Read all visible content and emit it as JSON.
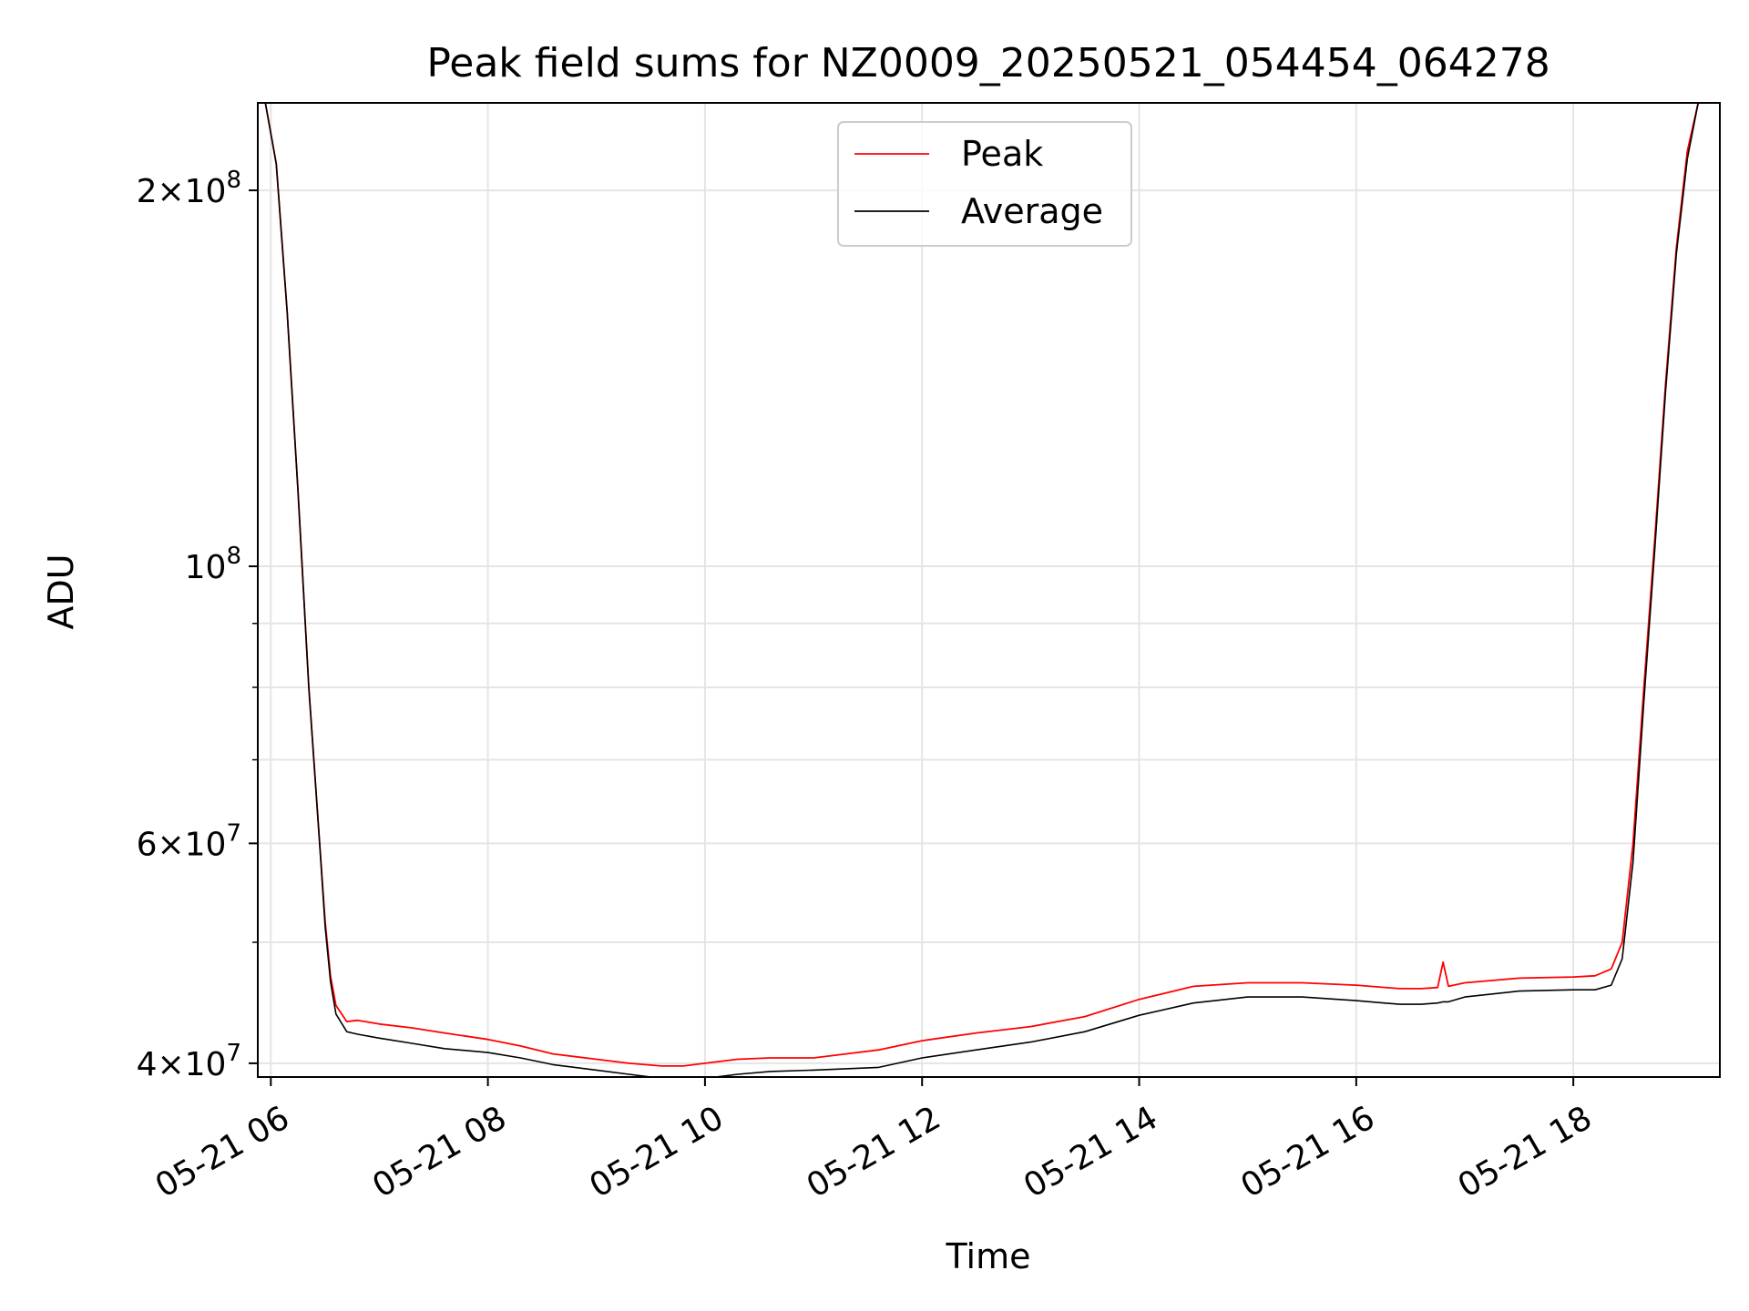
{
  "chart_data": {
    "type": "line",
    "title": "Peak field sums for NZ0009_20250521_054454_064278",
    "xlabel": "Time",
    "ylabel": "ADU",
    "x_unit": "hour",
    "xlim": [
      5.88,
      19.35
    ],
    "y_scale": "log",
    "ylim": [
      39000000,
      235000000
    ],
    "grid": true,
    "legend_position": "upper center",
    "x_ticks": [
      {
        "value": 6,
        "label": "05-21 06"
      },
      {
        "value": 8,
        "label": "05-21 08"
      },
      {
        "value": 10,
        "label": "05-21 10"
      },
      {
        "value": 12,
        "label": "05-21 12"
      },
      {
        "value": 14,
        "label": "05-21 14"
      },
      {
        "value": 16,
        "label": "05-21 16"
      },
      {
        "value": 18,
        "label": "05-21 18"
      }
    ],
    "y_ticks": [
      {
        "value": 40000000,
        "mantissa": "4",
        "exp": "7"
      },
      {
        "value": 60000000,
        "mantissa": "6",
        "exp": "7"
      },
      {
        "value": 100000000,
        "mantissa": "",
        "exp": "8"
      },
      {
        "value": 200000000,
        "mantissa": "2",
        "exp": "8"
      }
    ],
    "y_minor_ticks": [
      50000000,
      70000000,
      80000000,
      90000000
    ],
    "series": [
      {
        "name": "Peak",
        "color": "#ff0000",
        "x": [
          5.95,
          6.05,
          6.15,
          6.25,
          6.35,
          6.45,
          6.5,
          6.55,
          6.6,
          6.7,
          6.8,
          7.0,
          7.3,
          7.6,
          8.0,
          8.3,
          8.6,
          9.0,
          9.3,
          9.6,
          9.8,
          10.0,
          10.3,
          10.6,
          11.0,
          11.3,
          11.6,
          12.0,
          12.5,
          13.0,
          13.5,
          14.0,
          14.5,
          15.0,
          15.5,
          16.0,
          16.4,
          16.6,
          16.75,
          16.8,
          16.85,
          17.0,
          17.5,
          18.0,
          18.2,
          18.35,
          18.45,
          18.55,
          18.65,
          18.75,
          18.85,
          18.95,
          19.05,
          19.15,
          19.3
        ],
        "y": [
          235000000,
          210000000,
          160000000,
          115000000,
          80000000,
          60000000,
          52000000,
          47000000,
          44500000,
          43200000,
          43300000,
          43000000,
          42700000,
          42300000,
          41800000,
          41300000,
          40700000,
          40300000,
          40000000,
          39800000,
          39800000,
          40000000,
          40300000,
          40400000,
          40400000,
          40700000,
          41000000,
          41700000,
          42300000,
          42800000,
          43600000,
          45000000,
          46100000,
          46400000,
          46400000,
          46200000,
          45900000,
          45900000,
          46000000,
          48200000,
          46100000,
          46400000,
          46800000,
          46900000,
          47000000,
          47600000,
          50000000,
          60000000,
          80000000,
          105000000,
          140000000,
          180000000,
          215000000,
          235000000,
          235000000
        ]
      },
      {
        "name": "Average",
        "color": "#000000",
        "x": [
          5.95,
          6.05,
          6.15,
          6.25,
          6.35,
          6.45,
          6.5,
          6.55,
          6.6,
          6.7,
          6.8,
          7.0,
          7.3,
          7.6,
          8.0,
          8.3,
          8.6,
          9.0,
          9.3,
          9.6,
          9.8,
          10.0,
          10.3,
          10.6,
          11.0,
          11.3,
          11.6,
          12.0,
          12.5,
          13.0,
          13.5,
          14.0,
          14.5,
          15.0,
          15.5,
          16.0,
          16.4,
          16.6,
          16.75,
          16.8,
          16.85,
          17.0,
          17.5,
          18.0,
          18.2,
          18.35,
          18.45,
          18.55,
          18.65,
          18.75,
          18.85,
          18.95,
          19.05,
          19.15,
          19.3
        ],
        "y": [
          235000000,
          210000000,
          160000000,
          115000000,
          80000000,
          60000000,
          51500000,
          46500000,
          43800000,
          42400000,
          42200000,
          41900000,
          41500000,
          41100000,
          40800000,
          40400000,
          39900000,
          39500000,
          39200000,
          38900000,
          38800000,
          38900000,
          39200000,
          39400000,
          39500000,
          39600000,
          39700000,
          40400000,
          41000000,
          41600000,
          42400000,
          43700000,
          44700000,
          45200000,
          45200000,
          44900000,
          44600000,
          44600000,
          44700000,
          44800000,
          44800000,
          45200000,
          45700000,
          45800000,
          45800000,
          46200000,
          48500000,
          58000000,
          78000000,
          103000000,
          138000000,
          178000000,
          212000000,
          235000000,
          235000000
        ]
      }
    ]
  }
}
